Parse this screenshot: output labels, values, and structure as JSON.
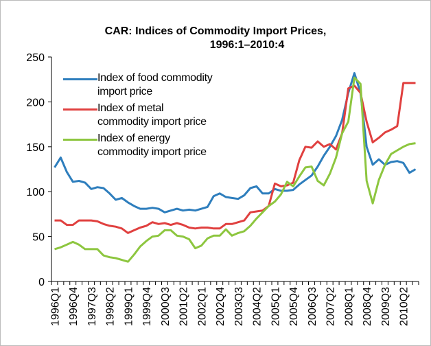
{
  "chart_data": {
    "type": "line",
    "title": [
      "CAR: Indices of Commodity Import Prices,",
      "1996:1–2010:4"
    ],
    "categories": [
      "1996Q1",
      null,
      null,
      "1996Q4",
      null,
      null,
      "1997Q3",
      null,
      null,
      "1998Q2",
      null,
      null,
      "1999Q1",
      null,
      null,
      "1999Q4",
      null,
      null,
      "2000Q3",
      null,
      null,
      "2001Q2",
      null,
      null,
      "2002Q1",
      null,
      null,
      "2002Q4",
      null,
      null,
      "2003Q3",
      null,
      null,
      "2004Q2",
      null,
      null,
      "2005Q1",
      null,
      null,
      "2005Q4",
      null,
      null,
      "2006Q3",
      null,
      null,
      "2007Q2",
      null,
      null,
      "2008Q1",
      null,
      null,
      "2008Q4",
      null,
      null,
      "2009Q3",
      null,
      null,
      "2010Q2",
      null,
      null
    ],
    "series": [
      {
        "name": "Index of food commodity import price",
        "color": "#2e7ebd",
        "values": [
          127,
          138,
          122,
          111,
          112,
          110,
          103,
          105,
          104,
          98,
          91,
          93,
          88,
          84,
          81,
          81,
          82,
          81,
          77,
          79,
          81,
          79,
          80,
          79,
          81,
          83,
          95,
          98,
          94,
          93,
          92,
          96,
          104,
          106,
          98,
          98,
          103,
          101,
          101,
          102,
          108,
          113,
          118,
          128,
          140,
          150,
          162,
          180,
          210,
          232,
          210,
          150,
          130,
          136,
          130,
          133,
          134,
          132,
          121,
          125
        ]
      },
      {
        "name": "Index of metal commodity import price",
        "color": "#e0403f",
        "values": [
          68,
          68,
          63,
          63,
          68,
          68,
          68,
          67,
          64,
          62,
          61,
          59,
          54,
          57,
          60,
          62,
          66,
          64,
          65,
          63,
          65,
          63,
          60,
          59,
          60,
          60,
          59,
          59,
          64,
          64,
          66,
          68,
          77,
          78,
          79,
          84,
          109,
          106,
          107,
          110,
          135,
          150,
          149,
          156,
          150,
          153,
          147,
          165,
          215,
          218,
          210,
          178,
          155,
          160,
          166,
          169,
          173,
          221,
          221,
          221
        ]
      },
      {
        "name": "Index of energy commodity import price",
        "color": "#8dc63f",
        "values": [
          36,
          38,
          41,
          44,
          41,
          36,
          36,
          36,
          29,
          27,
          26,
          24,
          22,
          30,
          39,
          45,
          50,
          51,
          57,
          57,
          51,
          50,
          47,
          37,
          40,
          48,
          51,
          51,
          58,
          51,
          54,
          56,
          62,
          70,
          77,
          84,
          89,
          97,
          111,
          106,
          117,
          127,
          128,
          112,
          107,
          120,
          138,
          165,
          178,
          227,
          220,
          112,
          87,
          113,
          130,
          142,
          146,
          150,
          153,
          154
        ]
      }
    ],
    "ylim": [
      0,
      250
    ],
    "yticks": [
      0,
      50,
      100,
      150,
      200,
      250
    ],
    "grid": false,
    "legend": "top-left"
  }
}
